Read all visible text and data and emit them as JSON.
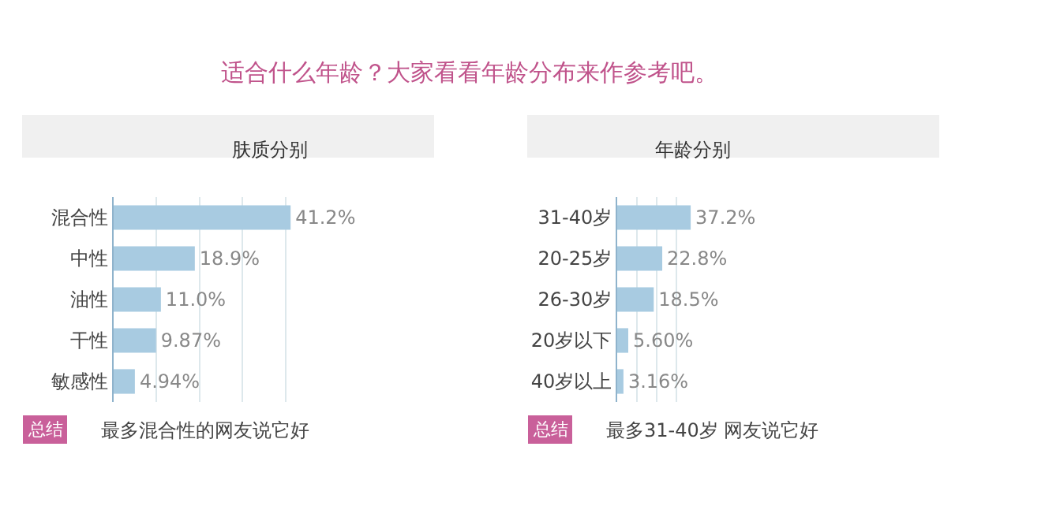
{
  "chart_data": [
    {
      "type": "bar",
      "orientation": "horizontal",
      "title": "适合什么年龄？大家看看年龄分布来作参考吧。",
      "subtitle": "肤质分别",
      "categories": [
        "混合性",
        "中性",
        "油性",
        "干性",
        "敏感性"
      ],
      "values": [
        41.2,
        18.9,
        11.0,
        9.87,
        4.94
      ],
      "color": "#a8cbe1",
      "value_labels": [
        "41.2%",
        "18.9%",
        "11.0%",
        "9.87%",
        "4.94%"
      ],
      "grid": "x",
      "tick_labels": "y",
      "annotations": [
        "总结",
        "最多混合性的网友说它好"
      ]
    },
    {
      "type": "bar",
      "orientation": "horizontal",
      "subtitle": "年龄分别",
      "categories": [
        "31-40岁",
        "20-25岁",
        "26-30岁",
        "20岁以下",
        "40岁以上"
      ],
      "values": [
        37.2,
        22.8,
        18.5,
        5.6,
        3.16
      ],
      "color": "#a8cbe1",
      "value_labels": [
        "37.2%",
        "22.8%",
        "18.5%",
        "5.60%",
        "3.16%"
      ],
      "grid": "x",
      "tick_labels": "y",
      "annotations": [
        "总结",
        "最多31-40岁 网友说它好"
      ]
    }
  ]
}
